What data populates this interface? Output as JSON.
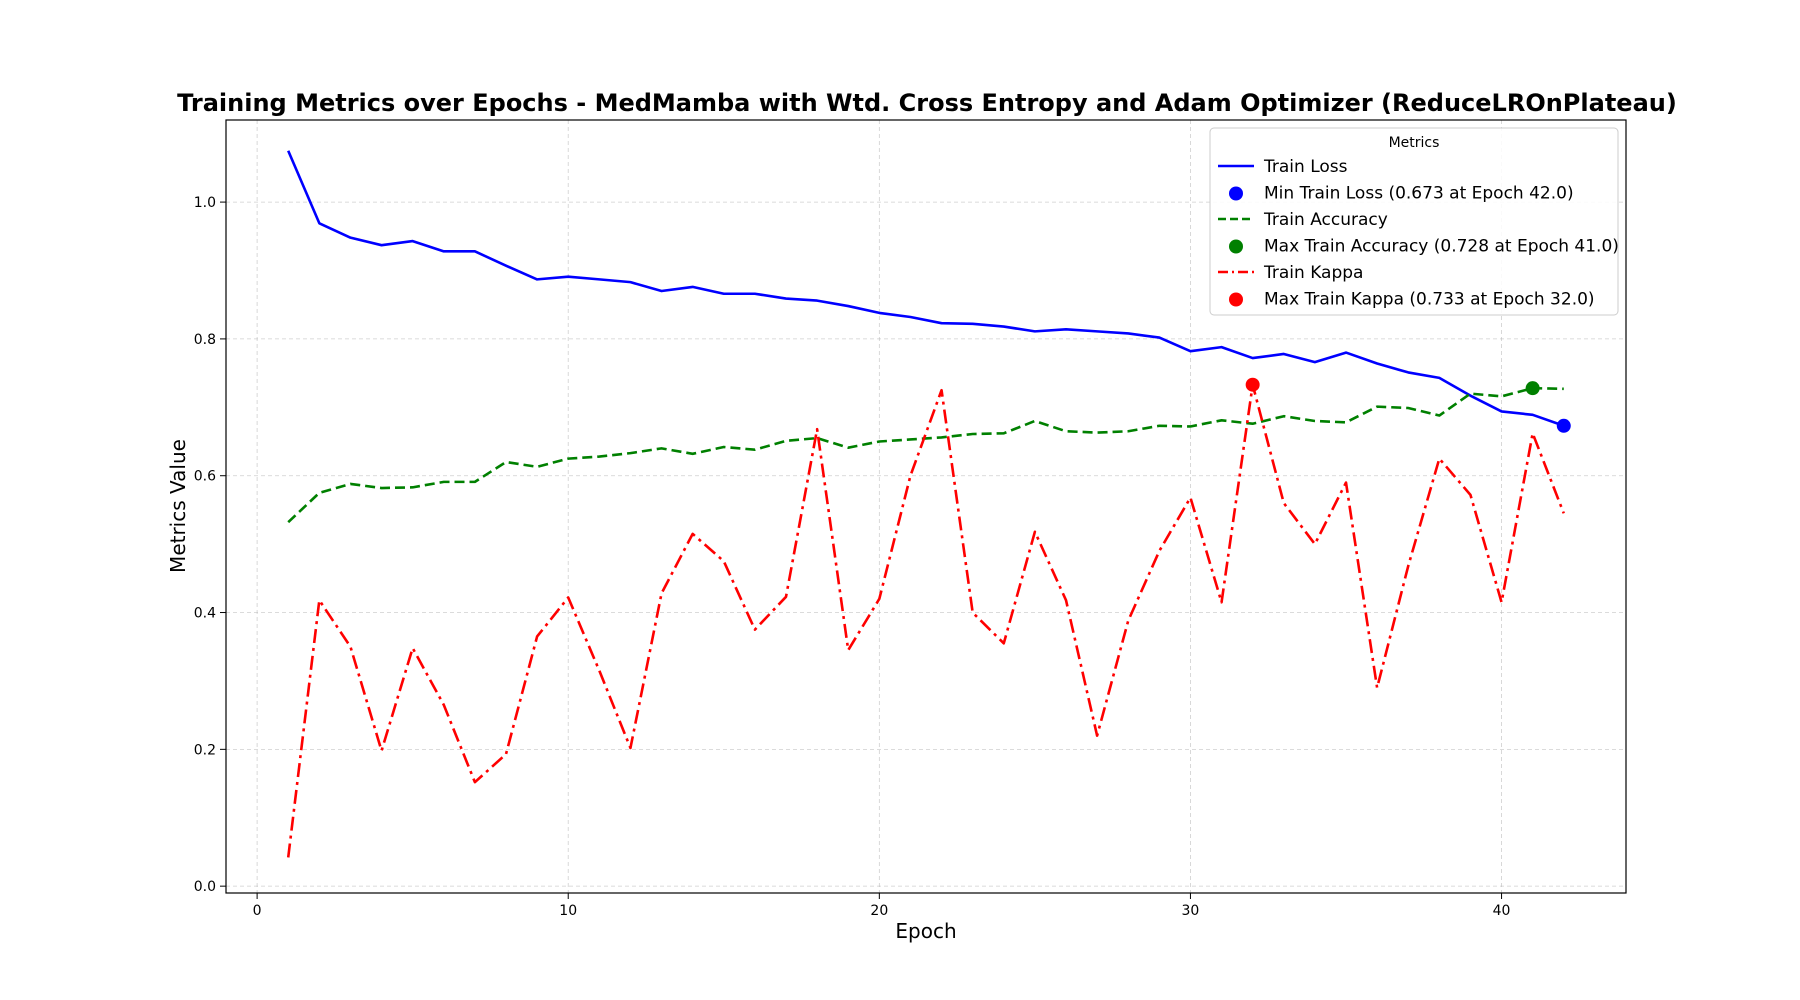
{
  "chart_data": {
    "type": "line",
    "title": "Training Metrics over Epochs - MedMamba with Wtd. Cross Entropy and Adam Optimizer (ReduceLROnPlateau)",
    "xlabel": "Epoch",
    "ylabel": "Metrics Value",
    "xlim": [
      -1,
      44
    ],
    "ylim": [
      -0.01,
      1.12
    ],
    "xticks": [
      0,
      10,
      20,
      30,
      40
    ],
    "yticks": [
      0.0,
      0.2,
      0.4,
      0.6,
      0.8,
      1.0
    ],
    "grid": true,
    "legend": {
      "title": "Metrics",
      "placement": "upper-right"
    },
    "x": [
      1,
      2,
      3,
      4,
      5,
      6,
      7,
      8,
      9,
      10,
      11,
      12,
      13,
      14,
      15,
      16,
      17,
      18,
      19,
      20,
      21,
      22,
      23,
      24,
      25,
      26,
      27,
      28,
      29,
      30,
      31,
      32,
      33,
      34,
      35,
      36,
      37,
      38,
      39,
      40,
      41,
      42
    ],
    "series": [
      {
        "name": "Train Loss",
        "color": "#0000ff",
        "dash": "solid",
        "values": [
          1.075,
          0.969,
          0.948,
          0.937,
          0.943,
          0.928,
          0.928,
          0.907,
          0.887,
          0.891,
          0.887,
          0.883,
          0.87,
          0.876,
          0.866,
          0.866,
          0.859,
          0.856,
          0.848,
          0.838,
          0.832,
          0.823,
          0.822,
          0.818,
          0.811,
          0.814,
          0.811,
          0.808,
          0.802,
          0.782,
          0.788,
          0.772,
          0.778,
          0.766,
          0.78,
          0.764,
          0.751,
          0.743,
          0.717,
          0.694,
          0.689,
          0.673
        ]
      },
      {
        "name": "Train Accuracy",
        "color": "#008000",
        "dash": "dashed",
        "values": [
          0.532,
          0.575,
          0.588,
          0.582,
          0.583,
          0.591,
          0.591,
          0.62,
          0.613,
          0.625,
          0.628,
          0.633,
          0.64,
          0.632,
          0.642,
          0.638,
          0.651,
          0.655,
          0.641,
          0.65,
          0.653,
          0.656,
          0.661,
          0.662,
          0.68,
          0.665,
          0.663,
          0.665,
          0.673,
          0.672,
          0.681,
          0.676,
          0.687,
          0.68,
          0.678,
          0.701,
          0.699,
          0.688,
          0.72,
          0.716,
          0.728,
          0.727
        ]
      },
      {
        "name": "Train Kappa",
        "color": "#ff0000",
        "dash": "dashdot",
        "values": [
          0.042,
          0.418,
          0.35,
          0.198,
          0.348,
          0.265,
          0.152,
          0.193,
          0.365,
          0.422,
          0.315,
          0.202,
          0.428,
          0.515,
          0.475,
          0.375,
          0.423,
          0.668,
          0.345,
          0.42,
          0.6,
          0.725,
          0.4,
          0.355,
          0.518,
          0.418,
          0.22,
          0.388,
          0.49,
          0.568,
          0.415,
          0.733,
          0.56,
          0.5,
          0.59,
          0.29,
          0.468,
          0.625,
          0.572,
          0.415,
          0.662,
          0.545
        ]
      }
    ],
    "markers": [
      {
        "name": "Min Train Loss (0.673 at Epoch 42.0)",
        "x": 42,
        "y": 0.673,
        "color": "#0000ff"
      },
      {
        "name": "Max Train Accuracy (0.728 at Epoch 41.0)",
        "x": 41,
        "y": 0.728,
        "color": "#008000"
      },
      {
        "name": "Max Train Kappa (0.733 at Epoch 32.0)",
        "x": 32,
        "y": 0.733,
        "color": "#ff0000"
      }
    ]
  }
}
